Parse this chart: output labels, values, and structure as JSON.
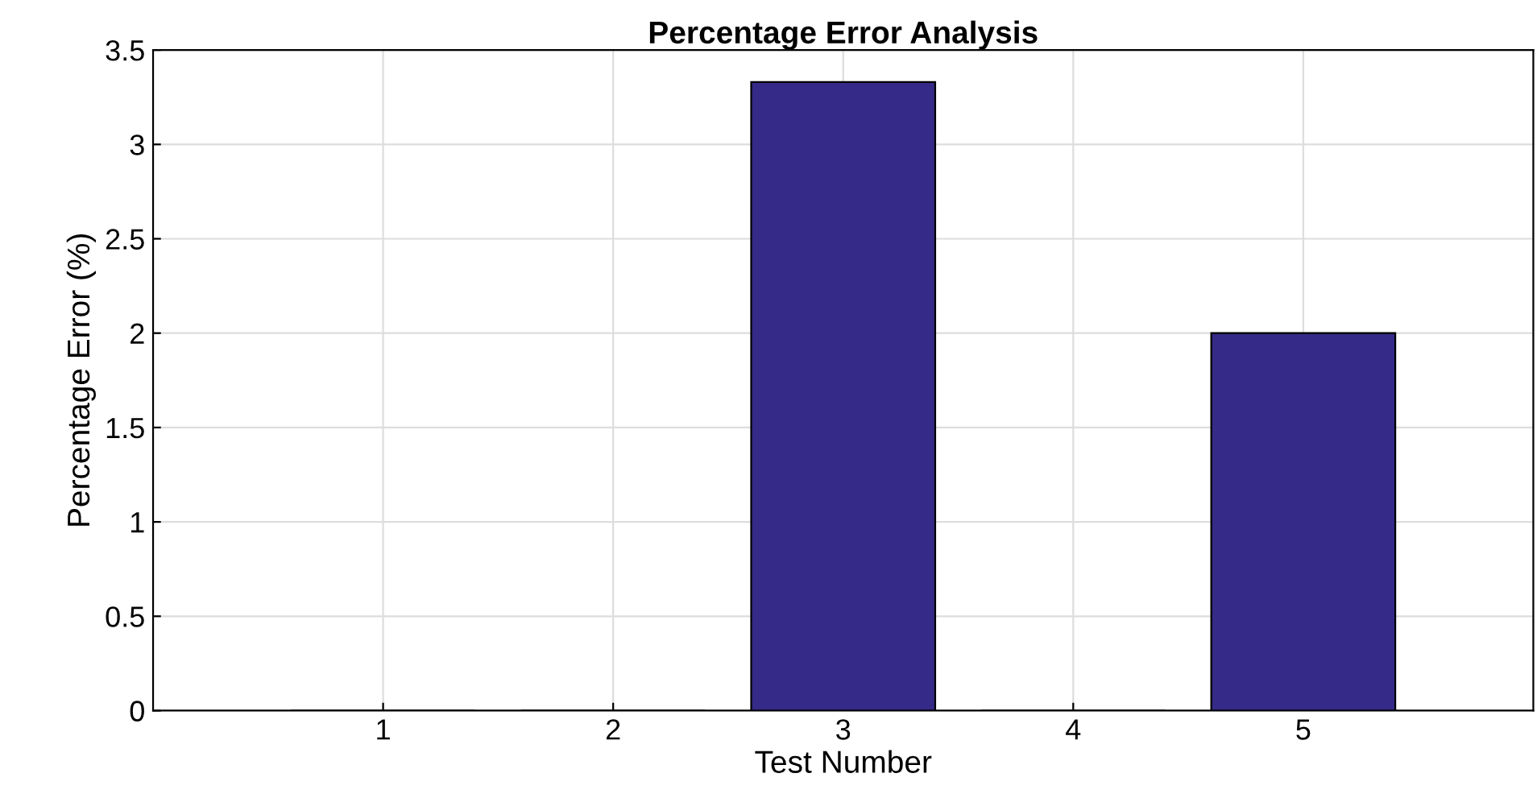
{
  "chart_data": {
    "type": "bar",
    "title": "Percentage Error Analysis",
    "xlabel": "Test Number",
    "ylabel": "Percentage Error (%)",
    "x": [
      1,
      2,
      3,
      4,
      5
    ],
    "values": [
      0,
      0,
      3.33,
      0,
      2
    ],
    "color": "#352a87",
    "xlim": [
      0,
      6
    ],
    "xticks": [
      1,
      2,
      3,
      4,
      5
    ],
    "ylim": [
      0,
      3.5
    ],
    "yticks": [
      0,
      0.5,
      1,
      1.5,
      2,
      2.5,
      3,
      3.5
    ],
    "grid": true
  }
}
